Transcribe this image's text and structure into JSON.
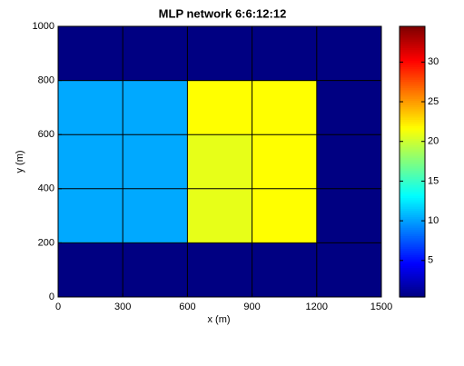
{
  "chart_data": {
    "type": "heatmap",
    "title": "MLP network 6:6:12:12",
    "xlabel": "x (m)",
    "ylabel": "y (m)",
    "xlim": [
      0,
      1500
    ],
    "xticks": [
      0,
      300,
      600,
      900,
      1200,
      1500
    ],
    "ylim": [
      0,
      1000
    ],
    "yticks": [
      0,
      200,
      400,
      600,
      800,
      1000
    ],
    "z": [
      [
        0.5,
        0.5,
        0.5,
        0.5,
        0.5
      ],
      [
        10.3,
        10.3,
        20.9,
        21.7,
        0.5
      ],
      [
        10.3,
        10.3,
        20.9,
        21.7,
        0.5
      ],
      [
        10.3,
        10.3,
        21.7,
        21.7,
        0.5
      ],
      [
        0.5,
        0.5,
        0.5,
        0.5,
        0.5
      ]
    ],
    "colormap": "jet",
    "clim": [
      0.4,
      34.5
    ],
    "cticks": [
      5,
      10,
      15,
      20,
      25,
      30
    ],
    "grid": true
  }
}
